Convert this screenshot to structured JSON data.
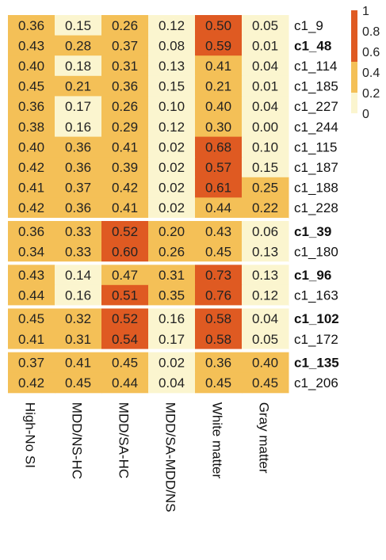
{
  "chart_data": {
    "type": "heatmap",
    "columns": [
      "High-No SI",
      "MDD/NS-HC",
      "MDD/SA-HC",
      "MDD/SA-MDD/NS",
      "White matter",
      "Gray matter"
    ],
    "groups": [
      {
        "rows": [
          {
            "label": "c1_9",
            "bold": false,
            "values": [
              0.36,
              0.15,
              0.26,
              0.12,
              0.5,
              0.05
            ]
          },
          {
            "label": "c1_48",
            "bold": true,
            "values": [
              0.43,
              0.28,
              0.37,
              0.08,
              0.59,
              0.01
            ]
          },
          {
            "label": "c1_114",
            "bold": false,
            "values": [
              0.4,
              0.18,
              0.31,
              0.13,
              0.41,
              0.04
            ]
          },
          {
            "label": "c1_185",
            "bold": false,
            "values": [
              0.45,
              0.21,
              0.36,
              0.15,
              0.21,
              0.01
            ]
          },
          {
            "label": "c1_227",
            "bold": false,
            "values": [
              0.36,
              0.17,
              0.26,
              0.1,
              0.4,
              0.04
            ]
          },
          {
            "label": "c1_244",
            "bold": false,
            "values": [
              0.38,
              0.16,
              0.29,
              0.12,
              0.3,
              0.0
            ]
          },
          {
            "label": "c1_115",
            "bold": false,
            "values": [
              0.4,
              0.36,
              0.41,
              0.02,
              0.68,
              0.1
            ]
          },
          {
            "label": "c1_187",
            "bold": false,
            "values": [
              0.42,
              0.36,
              0.39,
              0.02,
              0.57,
              0.15
            ]
          },
          {
            "label": "c1_188",
            "bold": false,
            "values": [
              0.41,
              0.37,
              0.42,
              0.02,
              0.61,
              0.25
            ]
          },
          {
            "label": "c1_228",
            "bold": false,
            "values": [
              0.42,
              0.36,
              0.41,
              0.02,
              0.44,
              0.22
            ]
          }
        ]
      },
      {
        "rows": [
          {
            "label": "c1_39",
            "bold": true,
            "values": [
              0.36,
              0.33,
              0.52,
              0.2,
              0.43,
              0.06
            ]
          },
          {
            "label": "c1_180",
            "bold": false,
            "values": [
              0.34,
              0.33,
              0.6,
              0.26,
              0.45,
              0.13
            ]
          }
        ]
      },
      {
        "rows": [
          {
            "label": "c1_96",
            "bold": true,
            "values": [
              0.43,
              0.14,
              0.47,
              0.31,
              0.73,
              0.13
            ]
          },
          {
            "label": "c1_163",
            "bold": false,
            "values": [
              0.44,
              0.16,
              0.51,
              0.35,
              0.76,
              0.12
            ]
          }
        ]
      },
      {
        "rows": [
          {
            "label": "c1_102",
            "bold": true,
            "values": [
              0.45,
              0.32,
              0.52,
              0.16,
              0.58,
              0.04
            ]
          },
          {
            "label": "c1_172",
            "bold": false,
            "values": [
              0.41,
              0.31,
              0.54,
              0.17,
              0.58,
              0.05
            ]
          }
        ]
      },
      {
        "rows": [
          {
            "label": "c1_135",
            "bold": true,
            "values": [
              0.37,
              0.41,
              0.45,
              0.02,
              0.36,
              0.4
            ]
          },
          {
            "label": "c1_206",
            "bold": false,
            "values": [
              0.42,
              0.45,
              0.44,
              0.04,
              0.45,
              0.45
            ]
          }
        ]
      }
    ],
    "legend": {
      "tick_labels": [
        "1",
        "0.8",
        "0.6",
        "0.4",
        "0.2",
        "0"
      ],
      "tick_values": [
        1,
        0.8,
        0.6,
        0.4,
        0.2,
        0
      ],
      "placement": "top-right"
    },
    "color_scale": [
      {
        "max": 0.2,
        "color": "#fbf5cf"
      },
      {
        "max": 0.5,
        "color": "#f4c057"
      },
      {
        "max": 1.0,
        "color": "#df5a22"
      }
    ],
    "cell_text_color": "#222222",
    "separator_color": "#ffffff",
    "ylim": [
      0,
      1
    ]
  }
}
